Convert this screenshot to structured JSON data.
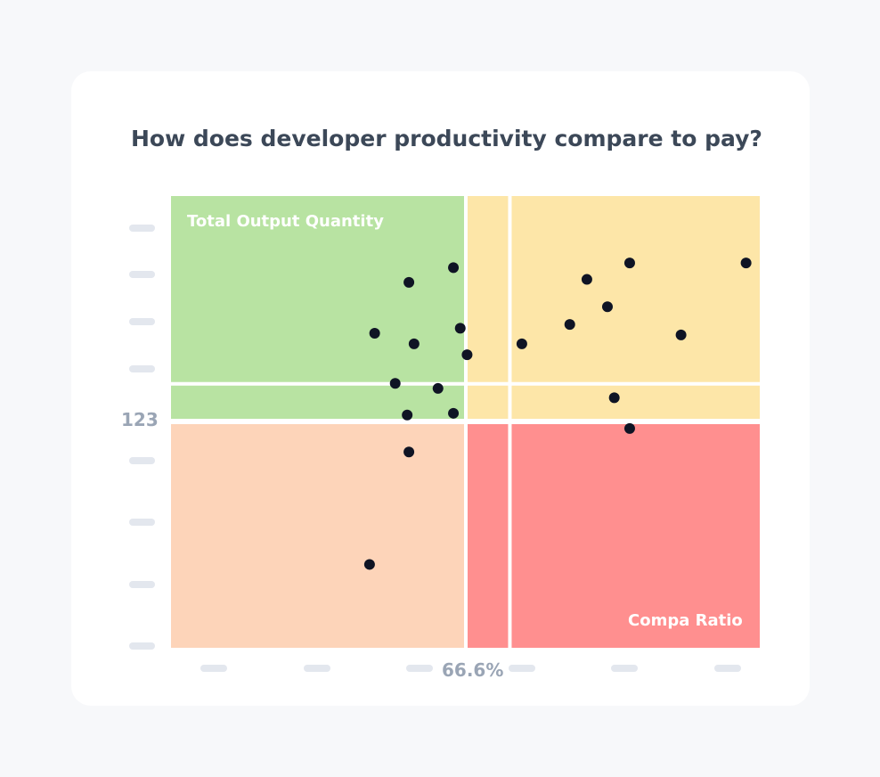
{
  "title": "How does developer productivity compare to pay?",
  "chart_data": {
    "type": "scatter",
    "title": "How does developer productivity compare to pay?",
    "y_axis_title": "Total Output Quantity",
    "x_axis_title": "Compa Ratio",
    "x_threshold_label": "66.6%",
    "y_threshold_label": "123",
    "x_threshold": 66.6,
    "y_threshold": 123,
    "x_range": [
      46.8,
      81.2
    ],
    "y_range": [
      60.3,
      167.6
    ],
    "grid": false,
    "quadrant_colors": {
      "top_left": "#b8e3a2",
      "top_right": "#fde6a8",
      "bottom_left": "#fdd4b9",
      "bottom_right": "#ff8f8f"
    },
    "point_color": "#0f1424",
    "points": [
      {
        "x": 60.7,
        "y": 147.1
      },
      {
        "x": 63.3,
        "y": 150.6
      },
      {
        "x": 58.7,
        "y": 135.0
      },
      {
        "x": 61.0,
        "y": 132.5
      },
      {
        "x": 63.7,
        "y": 136.2
      },
      {
        "x": 64.1,
        "y": 129.9
      },
      {
        "x": 67.3,
        "y": 132.5
      },
      {
        "x": 70.1,
        "y": 137.1
      },
      {
        "x": 71.1,
        "y": 147.8
      },
      {
        "x": 72.3,
        "y": 141.3
      },
      {
        "x": 73.6,
        "y": 151.7
      },
      {
        "x": 76.6,
        "y": 134.6
      },
      {
        "x": 80.4,
        "y": 151.7
      },
      {
        "x": 59.9,
        "y": 123.1
      },
      {
        "x": 62.4,
        "y": 121.9
      },
      {
        "x": 60.6,
        "y": 115.6
      },
      {
        "x": 63.3,
        "y": 116.0
      },
      {
        "x": 60.7,
        "y": 106.8
      },
      {
        "x": 58.4,
        "y": 80.1
      },
      {
        "x": 72.7,
        "y": 119.7
      },
      {
        "x": 73.6,
        "y": 112.4
      }
    ]
  }
}
